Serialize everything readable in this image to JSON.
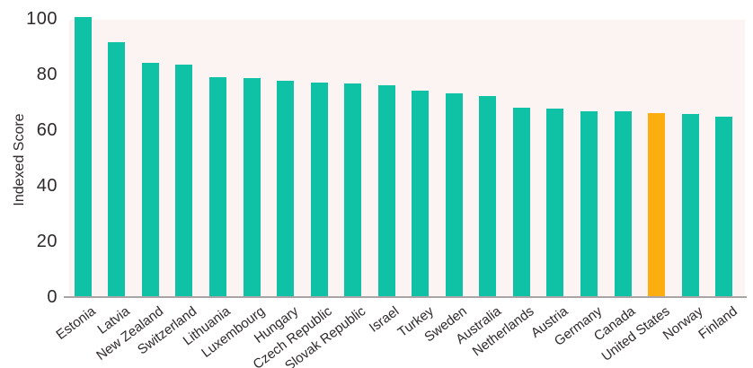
{
  "chart_data": {
    "type": "bar",
    "title": "",
    "xlabel": "",
    "ylabel": "Indexed Score",
    "ylim": [
      0,
      105
    ],
    "yticks": [
      0,
      20,
      40,
      60,
      80,
      100
    ],
    "grid": false,
    "legend": "none",
    "categories": [
      "Estonia",
      "Latvia",
      "New Zealand",
      "Switzerland",
      "Lithuania",
      "Luxembourg",
      "Hungary",
      "Czech Republic",
      "Slovak Republic",
      "Israel",
      "Turkey",
      "Sweden",
      "Australia",
      "Netherlands",
      "Austria",
      "Germany",
      "Canada",
      "United States",
      "Norway",
      "Finland"
    ],
    "values": [
      101,
      92,
      84.5,
      84,
      79.5,
      79,
      78,
      77.5,
      77,
      76.5,
      74.5,
      73.5,
      72.5,
      68.5,
      68,
      67,
      67,
      66.5,
      66,
      65
    ],
    "highlight": {
      "category": "United States",
      "color": "#fcae11"
    },
    "colors": {
      "bar": "#0fc2a5",
      "highlight": "#fcae11",
      "plot_background": "#fbf4f2",
      "axis_line": "#a9a5a7",
      "text": "#2e2a2b"
    }
  }
}
